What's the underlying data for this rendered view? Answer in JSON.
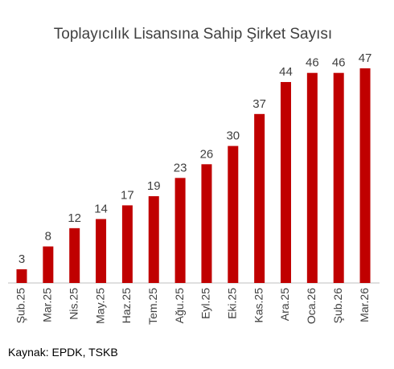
{
  "chart_data": {
    "type": "bar",
    "title": "Toplayıcılık Lisansına Sahip Şirket Sayısı",
    "categories": [
      "Şub.25",
      "Mar.25",
      "Nis.25",
      "May.25",
      "Haz.25",
      "Tem.25",
      "Ağu.25",
      "Eyl.25",
      "Eki.25",
      "Kas.25",
      "Ara.25",
      "Oca.26",
      "Şub.26",
      "Mar.26"
    ],
    "values": [
      3,
      8,
      12,
      14,
      17,
      19,
      23,
      26,
      30,
      37,
      44,
      46,
      46,
      47
    ],
    "color": "#c00000",
    "source": "Kaynak: EPDK, TSKB"
  }
}
